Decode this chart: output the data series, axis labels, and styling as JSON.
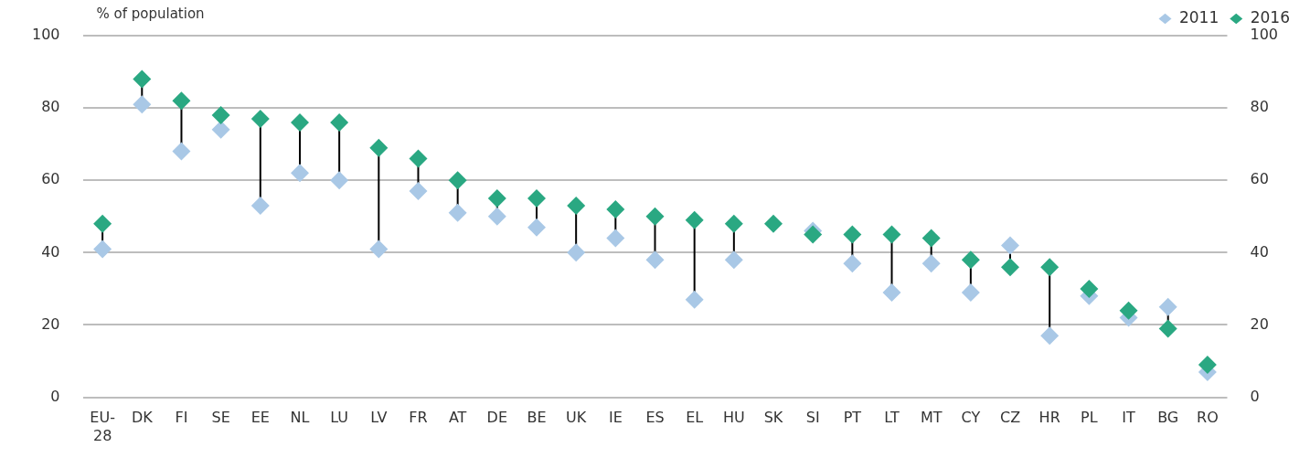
{
  "chart_data": {
    "type": "scatter",
    "ylabel": "% of population",
    "categories": [
      "EU-28",
      "DK",
      "FI",
      "SE",
      "EE",
      "NL",
      "LU",
      "LV",
      "FR",
      "AT",
      "DE",
      "BE",
      "UK",
      "IE",
      "ES",
      "EL",
      "HU",
      "SK",
      "SI",
      "PT",
      "LT",
      "MT",
      "CY",
      "CZ",
      "HR",
      "PL",
      "IT",
      "BG",
      "RO"
    ],
    "series": [
      {
        "name": "2011",
        "color": "#a9c8e6",
        "values": [
          41,
          81,
          68,
          74,
          53,
          62,
          60,
          41,
          57,
          51,
          50,
          47,
          40,
          44,
          38,
          27,
          38,
          null,
          46,
          37,
          29,
          37,
          29,
          42,
          17,
          28,
          22,
          25,
          7
        ]
      },
      {
        "name": "2016",
        "color": "#2aa882",
        "values": [
          48,
          88,
          82,
          78,
          77,
          76,
          76,
          69,
          66,
          60,
          55,
          55,
          53,
          52,
          50,
          49,
          48,
          48,
          45,
          45,
          45,
          44,
          38,
          36,
          36,
          30,
          24,
          19,
          9
        ]
      }
    ],
    "ylim": [
      0,
      100
    ],
    "yticks": [
      0,
      20,
      40,
      60,
      80,
      100
    ],
    "y2lim": [
      0,
      100
    ],
    "y2ticks": [
      0,
      20,
      40,
      60,
      80,
      100
    ],
    "grid": "y",
    "legend": "top right",
    "marker": "diamond"
  }
}
